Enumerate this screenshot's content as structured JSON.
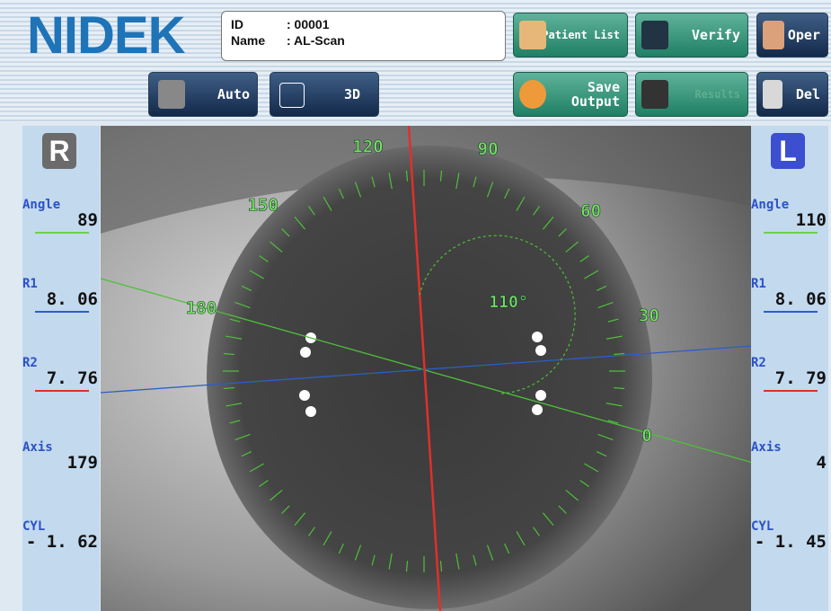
{
  "header": {
    "logo": "NIDEK",
    "id_label": "ID",
    "id_value": ": 00001",
    "name_label": "Name",
    "name_value": ": AL-Scan"
  },
  "buttons": {
    "patient_list": "Patient List",
    "verify": "Verify",
    "oper": "Oper",
    "auto": "Auto",
    "three_d": "3D",
    "save": "Save",
    "output": "Output",
    "results": "Results",
    "del": "Del"
  },
  "left_panel": {
    "eye": "R",
    "angle_label": "Angle",
    "angle": "89",
    "r1_label": "R1",
    "r1": "8. 06",
    "r2_label": "R2",
    "r2": "7. 76",
    "axis_label": "Axis",
    "axis": "179",
    "cyl_label": "CYL",
    "cyl": "- 1. 62"
  },
  "right_panel": {
    "eye": "L",
    "angle_label": "Angle",
    "angle": "110",
    "r1_label": "R1",
    "r1": "8. 06",
    "r2_label": "R2",
    "r2": "7. 79",
    "axis_label": "Axis",
    "axis": "4",
    "cyl_label": "CYL",
    "cyl": "- 1. 45"
  },
  "dial": {
    "labels": [
      "0",
      "30",
      "60",
      "90",
      "120",
      "150",
      "180"
    ],
    "angle_marker": "110°"
  }
}
